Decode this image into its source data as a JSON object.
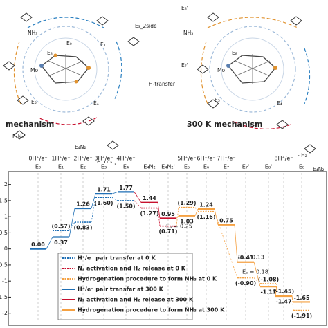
{
  "chart_data": {
    "type": "step",
    "categories": [
      "E₀",
      "E₁",
      "E₂",
      "E₃",
      "E₄",
      "E₄N₂",
      "E₄N₂'",
      "E₅",
      "E₆",
      "E₇",
      "E₇'",
      "E₈'",
      null,
      "E₈"
    ],
    "top_labels": [
      "0H⁺/e⁻",
      "1H⁺/e⁻",
      "2H⁺/e⁻",
      "3H⁺/e⁻",
      "4H⁺/e⁻",
      null,
      null,
      "5H⁺/e⁻",
      "6H⁺/e⁻",
      "7H⁺/e⁻",
      null,
      null,
      "8H⁺/e⁻",
      null
    ],
    "ylim": [
      -2.2,
      2.1
    ],
    "yticks": [
      2,
      1.5,
      1,
      0.5,
      0,
      -0.5,
      -1,
      -1.5,
      -2
    ],
    "series": [
      {
        "name": "H⁺/e⁻ pair transfer at 0 K",
        "color": "#1f6fb5",
        "style": "dotted",
        "values": [
          null,
          0.57,
          0.83,
          1.6,
          1.5,
          null,
          null,
          null,
          null,
          null,
          null,
          null,
          null,
          null
        ],
        "value_labels": [
          null,
          "(0.57)",
          "(0.83)",
          "(1.60)",
          "(1.50)",
          null,
          null,
          null,
          null,
          null,
          null,
          null,
          null,
          null
        ]
      },
      {
        "name": "N₂ activation and H₂ release at 0 K",
        "color": "#c8102e",
        "style": "dotted",
        "values": [
          null,
          null,
          null,
          null,
          null,
          1.27,
          0.71,
          null,
          null,
          null,
          null,
          null,
          null,
          null
        ],
        "value_labels": [
          null,
          null,
          null,
          null,
          null,
          "(1.27)",
          "(0.71)",
          null,
          null,
          null,
          null,
          null,
          null,
          null
        ]
      },
      {
        "name": "Hydrogenation procedure to form NH₃ at 0 K",
        "color": "#f5a142",
        "style": "dotted",
        "values": [
          null,
          null,
          null,
          null,
          null,
          null,
          null,
          1.29,
          1.16,
          null,
          -0.9,
          -1.08,
          -1.45,
          -1.91
        ],
        "value_labels": [
          null,
          null,
          null,
          null,
          null,
          null,
          null,
          "(1.29)",
          "(1.16)",
          null,
          "(-0.90)",
          "(-1.08)",
          "(-1.45)",
          "(-1.91)"
        ]
      },
      {
        "name": "H⁺/e⁻ pair transfer at 300 K",
        "color": "#1f6fb5",
        "style": "solid",
        "values": [
          0,
          0.37,
          1.26,
          1.71,
          1.77,
          null,
          null,
          null,
          null,
          null,
          null,
          null,
          null,
          null
        ],
        "value_labels": [
          "0.00",
          "0.37",
          "1.26",
          "1.71",
          "1.77",
          null,
          null,
          null,
          null,
          null,
          null,
          null,
          null,
          null
        ]
      },
      {
        "name": "N₂ activation and H₂ release at 300 K",
        "color": "#c8102e",
        "style": "solid",
        "values": [
          null,
          null,
          null,
          null,
          null,
          1.44,
          0.95,
          null,
          null,
          null,
          null,
          null,
          null,
          null
        ],
        "value_labels": [
          null,
          null,
          null,
          null,
          null,
          "1.44",
          "0.95",
          null,
          null,
          null,
          null,
          null,
          null,
          null
        ]
      },
      {
        "name": "Hydrogenation procedure to form NH₃ at 300 K",
        "color": "#f5a142",
        "style": "solid",
        "values": [
          null,
          null,
          null,
          null,
          null,
          null,
          null,
          1.03,
          1.24,
          0.75,
          -0.41,
          -1.17,
          -1.47,
          -1.65
        ],
        "value_labels": [
          null,
          null,
          null,
          null,
          null,
          null,
          null,
          "1.03",
          "1.24",
          "0.75",
          "-0.41",
          "-1.17",
          "-1.47",
          "-1.65"
        ]
      }
    ],
    "annotations": [
      "Eₐ = 0.25",
      "Eₐ = 0.13",
      "Eₐ = 0.18"
    ],
    "legend": "lower left"
  },
  "diagrams": {
    "left": {
      "caption": "mechanism",
      "labels": [
        "E₀",
        "E₁",
        "E₃_2side",
        "E₈",
        "Mo",
        "E₅",
        "E₄",
        "H-transfer",
        "E₄N₂'",
        "E₄N₂",
        "E₄-H₂N₂",
        "NH₃"
      ]
    },
    "right": {
      "caption": "300 K mechanism",
      "labels": [
        "E₈'",
        "E₇'",
        "E₈",
        "Mo",
        "E₅",
        "E₄",
        "- H₂",
        "E₄N₂",
        "NH₃"
      ]
    }
  }
}
